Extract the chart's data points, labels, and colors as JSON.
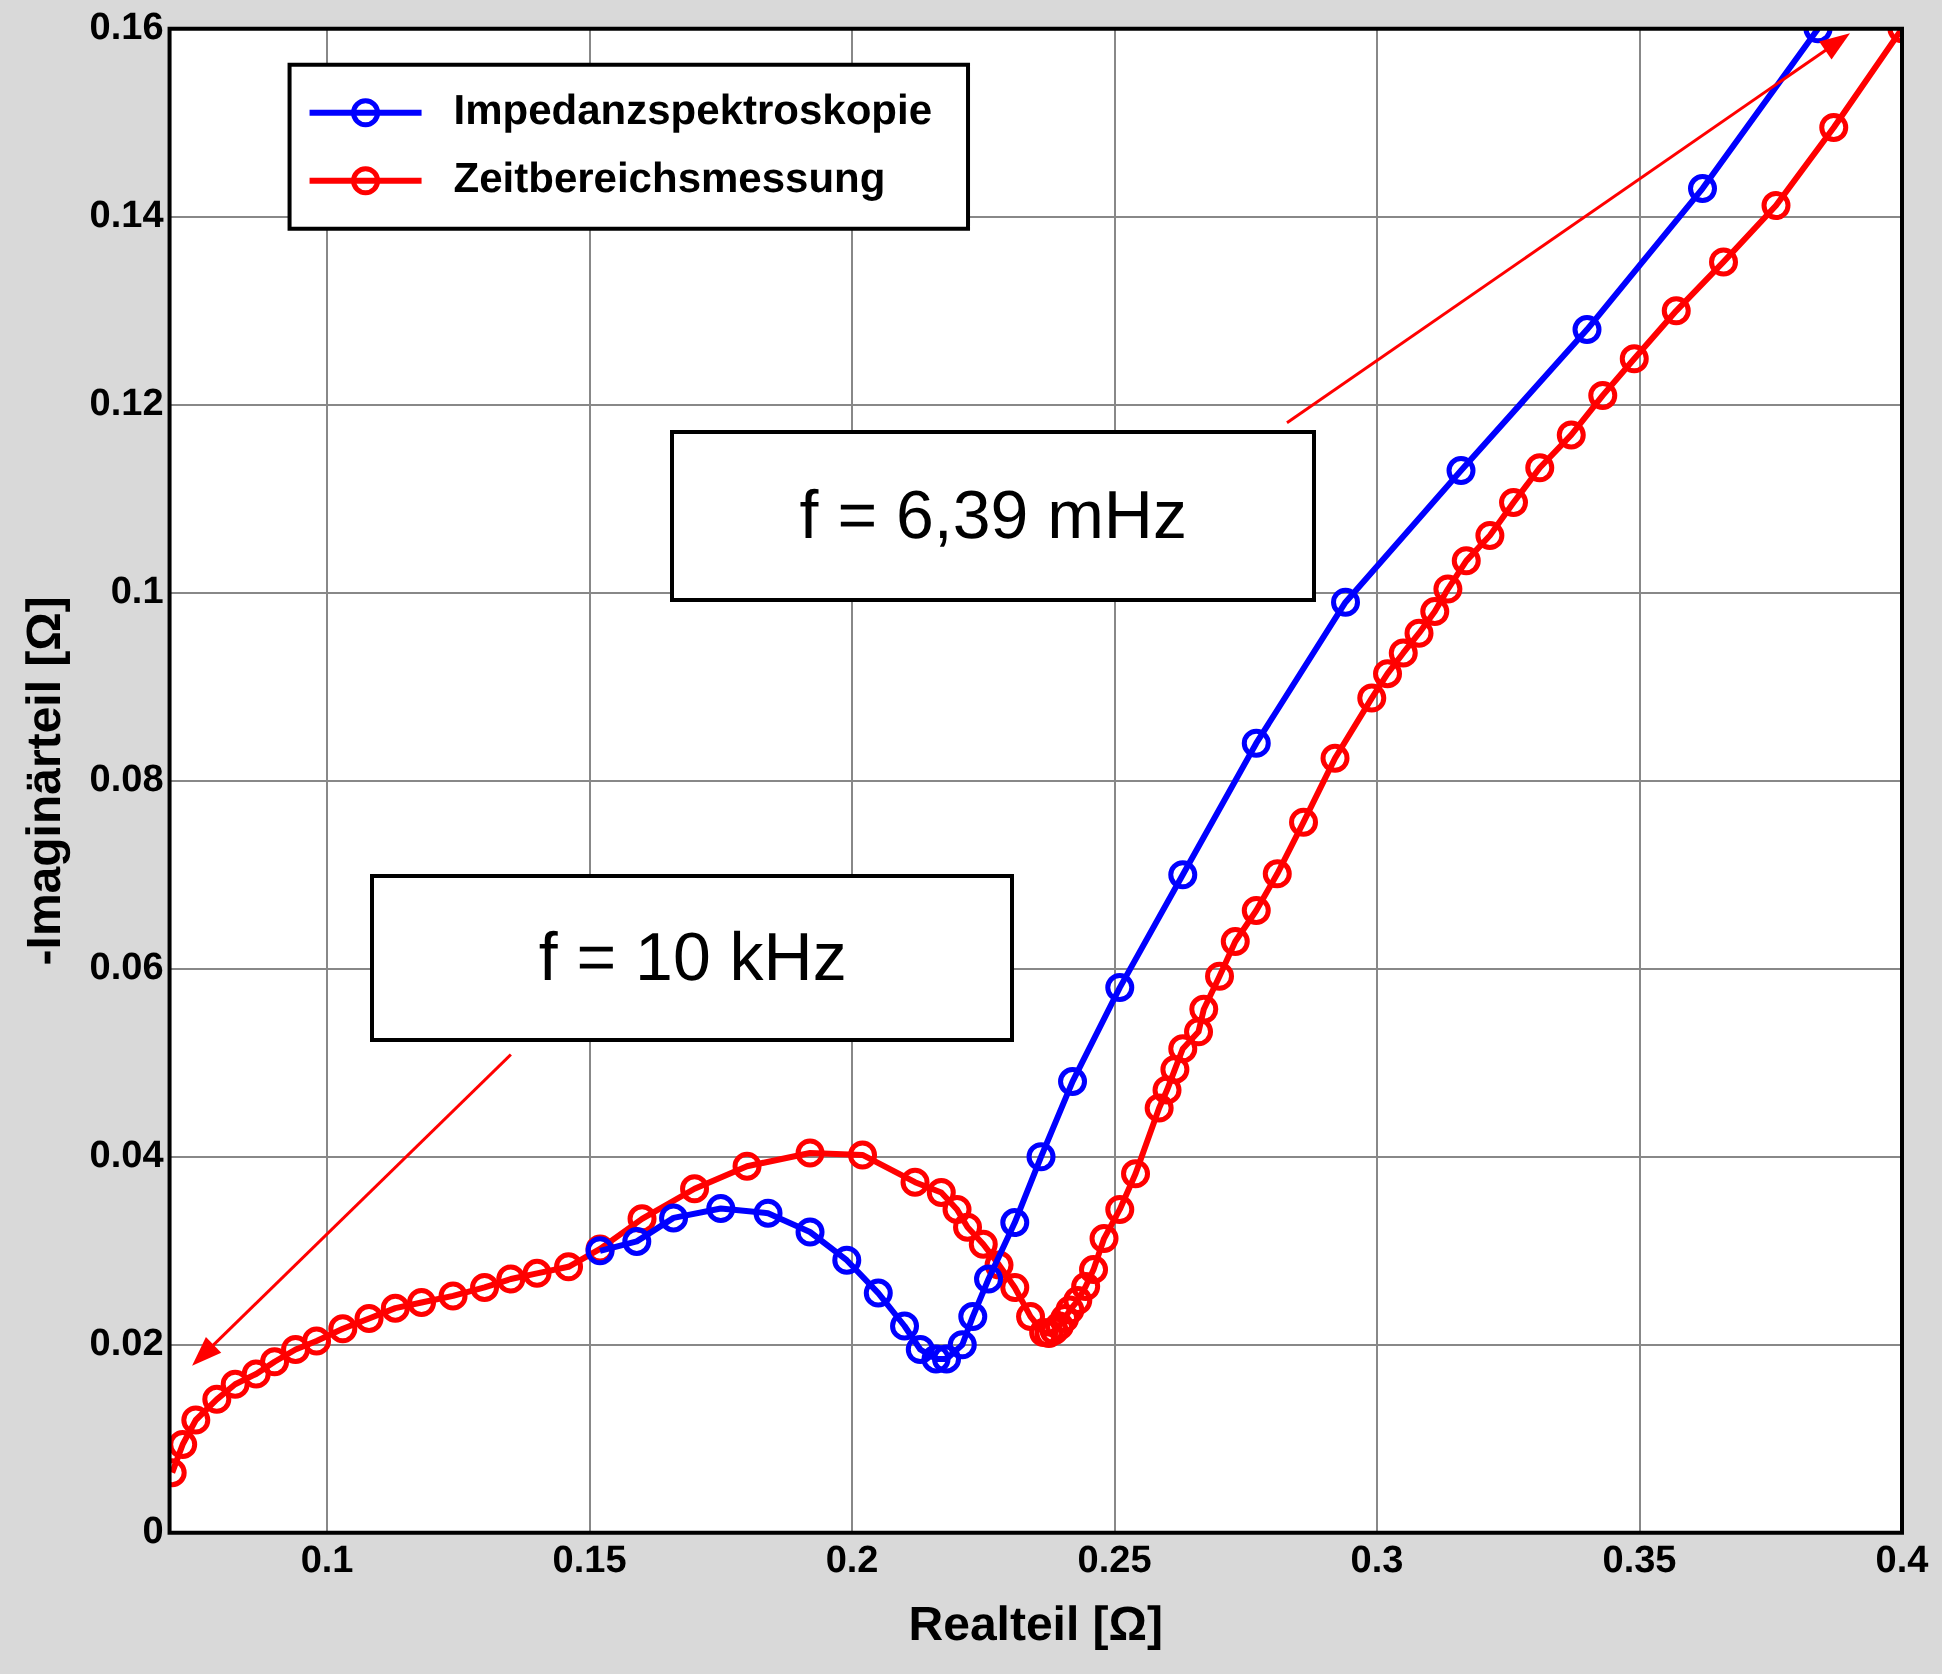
{
  "chart_data": {
    "type": "line",
    "xlabel": "Realteil [Ω]",
    "ylabel": "-Imaginärteil [Ω]",
    "xlim": [
      0.07,
      0.4
    ],
    "xticks": [
      0.1,
      0.15,
      0.2,
      0.25,
      0.3,
      0.35,
      0.4
    ],
    "ylim": [
      0,
      0.16
    ],
    "yticks": [
      0,
      0.02,
      0.04,
      0.06,
      0.08,
      0.1,
      0.12,
      0.14,
      0.16
    ],
    "grid": true,
    "legend": "top left",
    "marker": "circle",
    "line_style": "solid",
    "series": [
      {
        "name": "Impedanzspektroskopie",
        "color": "#0000ff",
        "x": [
          0.152,
          0.159,
          0.166,
          0.175,
          0.184,
          0.192,
          0.199,
          0.205,
          0.21,
          0.213,
          0.216,
          0.218,
          0.221,
          0.223,
          0.226,
          0.231,
          0.236,
          0.242,
          0.251,
          0.263,
          0.277,
          0.294,
          0.316,
          0.34,
          0.362,
          0.384
        ],
        "values": [
          0.03,
          0.031,
          0.0335,
          0.0345,
          0.034,
          0.032,
          0.029,
          0.0255,
          0.022,
          0.0195,
          0.0185,
          0.0185,
          0.02,
          0.023,
          0.027,
          0.033,
          0.04,
          0.048,
          0.058,
          0.07,
          0.084,
          0.099,
          0.113,
          0.128,
          0.143,
          0.16
        ]
      },
      {
        "name": "Zeitbereichsmessung",
        "color": "#ff0000",
        "x": [
          0.0705,
          0.0725,
          0.075,
          0.079,
          0.0825,
          0.0865,
          0.09,
          0.094,
          0.098,
          0.103,
          0.108,
          0.113,
          0.118,
          0.124,
          0.13,
          0.135,
          0.14,
          0.146,
          0.152,
          0.16,
          0.17,
          0.18,
          0.192,
          0.202,
          0.212,
          0.217,
          0.22,
          0.222,
          0.225,
          0.228,
          0.231,
          0.234,
          0.2365,
          0.2375,
          0.2385,
          0.2395,
          0.2405,
          0.2415,
          0.243,
          0.2445,
          0.246,
          0.248,
          0.251,
          0.254,
          0.2585,
          0.26,
          0.2615,
          0.263,
          0.266,
          0.267,
          0.27,
          0.273,
          0.277,
          0.281,
          0.286,
          0.292,
          0.299,
          0.302,
          0.305,
          0.308,
          0.311,
          0.3135,
          0.317,
          0.3215,
          0.326,
          0.331,
          0.337,
          0.343,
          0.349,
          0.357,
          0.366,
          0.376,
          0.387,
          0.4
        ],
        "values": [
          0.0064,
          0.0094,
          0.012,
          0.0142,
          0.0158,
          0.0169,
          0.0182,
          0.0195,
          0.0204,
          0.0217,
          0.0228,
          0.0239,
          0.0245,
          0.0252,
          0.0261,
          0.027,
          0.0276,
          0.0283,
          0.0302,
          0.0334,
          0.0366,
          0.039,
          0.0404,
          0.0402,
          0.0373,
          0.0362,
          0.0344,
          0.0325,
          0.0307,
          0.0285,
          0.0261,
          0.023,
          0.0213,
          0.0212,
          0.0215,
          0.022,
          0.0228,
          0.0237,
          0.0247,
          0.0262,
          0.028,
          0.0313,
          0.0344,
          0.0382,
          0.0452,
          0.0471,
          0.0493,
          0.0515,
          0.0533,
          0.0557,
          0.0592,
          0.0629,
          0.0662,
          0.0701,
          0.0756,
          0.0824,
          0.0888,
          0.0914,
          0.0936,
          0.0957,
          0.098,
          0.1004,
          0.1034,
          0.1061,
          0.1096,
          0.1133,
          0.1168,
          0.121,
          0.1249,
          0.13,
          0.1352,
          0.1412,
          0.1495,
          0.16
        ]
      }
    ],
    "annotations": [
      "f = 6,39 mHz",
      "f = 10 kHz"
    ]
  }
}
